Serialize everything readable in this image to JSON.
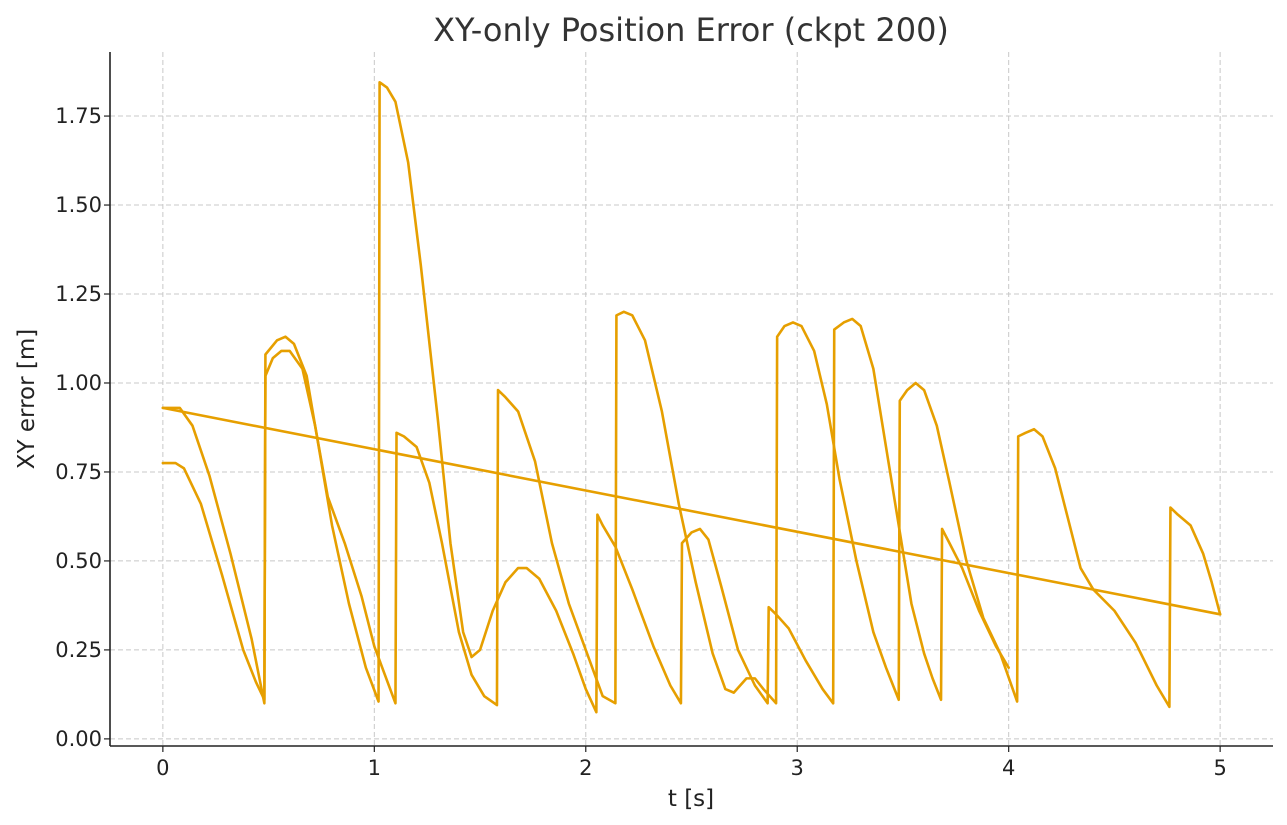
{
  "chart_data": {
    "type": "line",
    "title": "XY-only Position Error (ckpt 200)",
    "xlabel": "t [s]",
    "ylabel": "XY error [m]",
    "xlim": [
      -0.25,
      5.25
    ],
    "ylim": [
      -0.02,
      1.93
    ],
    "xticks": [
      0,
      1,
      2,
      3,
      4,
      5
    ],
    "xtick_labels": [
      "0",
      "1",
      "2",
      "3",
      "4",
      "5"
    ],
    "yticks": [
      0,
      0.25,
      0.5,
      0.75,
      1.0,
      1.25,
      1.5,
      1.75
    ],
    "ytick_labels": [
      "0.00",
      "0.25",
      "0.50",
      "0.75",
      "1.00",
      "1.25",
      "1.50",
      "1.75"
    ],
    "grid": true,
    "color": "#E69F00",
    "series": [
      {
        "values": [
          [
            0.0,
            0.93
          ],
          [
            0.08,
            0.93
          ],
          [
            0.14,
            0.88
          ],
          [
            0.22,
            0.74
          ],
          [
            0.32,
            0.52
          ],
          [
            0.42,
            0.28
          ],
          [
            0.48,
            0.1
          ],
          [
            0.485,
            1.08
          ],
          [
            0.54,
            1.12
          ],
          [
            0.58,
            1.13
          ],
          [
            0.62,
            1.11
          ],
          [
            0.68,
            1.02
          ],
          [
            0.72,
            0.88
          ],
          [
            0.78,
            0.68
          ],
          [
            0.86,
            0.55
          ],
          [
            0.94,
            0.4
          ],
          [
            1.0,
            0.26
          ],
          [
            1.05,
            0.18
          ],
          [
            1.1,
            0.1
          ],
          [
            1.105,
            0.86
          ],
          [
            1.14,
            0.85
          ],
          [
            1.2,
            0.82
          ],
          [
            1.26,
            0.72
          ],
          [
            1.32,
            0.55
          ],
          [
            1.4,
            0.3
          ],
          [
            1.46,
            0.18
          ],
          [
            1.52,
            0.12
          ],
          [
            1.58,
            0.095
          ],
          [
            1.585,
            0.98
          ],
          [
            1.62,
            0.96
          ],
          [
            1.68,
            0.92
          ],
          [
            1.76,
            0.78
          ],
          [
            1.84,
            0.55
          ],
          [
            1.92,
            0.38
          ],
          [
            2.0,
            0.25
          ],
          [
            2.08,
            0.12
          ],
          [
            2.14,
            0.1
          ],
          [
            2.145,
            1.19
          ],
          [
            2.18,
            1.2
          ],
          [
            2.22,
            1.19
          ],
          [
            2.28,
            1.12
          ],
          [
            2.36,
            0.92
          ],
          [
            2.44,
            0.66
          ],
          [
            2.52,
            0.44
          ],
          [
            2.6,
            0.24
          ],
          [
            2.66,
            0.14
          ],
          [
            2.7,
            0.13
          ],
          [
            2.76,
            0.17
          ],
          [
            2.8,
            0.17
          ],
          [
            2.84,
            0.14
          ],
          [
            2.9,
            0.1
          ],
          [
            2.905,
            1.13
          ],
          [
            2.94,
            1.16
          ],
          [
            2.98,
            1.17
          ],
          [
            3.02,
            1.16
          ],
          [
            3.08,
            1.09
          ],
          [
            3.14,
            0.94
          ],
          [
            3.2,
            0.73
          ],
          [
            3.28,
            0.5
          ],
          [
            3.36,
            0.3
          ],
          [
            3.42,
            0.2
          ],
          [
            3.48,
            0.11
          ],
          [
            3.485,
            0.95
          ],
          [
            3.52,
            0.98
          ],
          [
            3.56,
            1.0
          ],
          [
            3.6,
            0.98
          ],
          [
            3.66,
            0.88
          ],
          [
            3.72,
            0.72
          ],
          [
            3.8,
            0.5
          ],
          [
            3.88,
            0.34
          ],
          [
            3.96,
            0.24
          ],
          [
            4.04,
            0.105
          ],
          [
            4.045,
            0.85
          ],
          [
            4.08,
            0.86
          ],
          [
            4.12,
            0.87
          ],
          [
            4.16,
            0.85
          ],
          [
            4.22,
            0.76
          ],
          [
            4.28,
            0.62
          ],
          [
            4.34,
            0.48
          ],
          [
            4.4,
            0.42
          ],
          [
            4.5,
            0.36
          ],
          [
            4.6,
            0.27
          ],
          [
            4.7,
            0.15
          ],
          [
            4.76,
            0.09
          ],
          [
            4.765,
            0.65
          ],
          [
            4.8,
            0.63
          ],
          [
            4.86,
            0.6
          ],
          [
            4.92,
            0.52
          ],
          [
            4.96,
            0.44
          ],
          [
            5.0,
            0.35
          ]
        ]
      },
      {
        "values": [
          [
            0.0,
            0.775
          ],
          [
            0.06,
            0.775
          ],
          [
            0.1,
            0.76
          ],
          [
            0.18,
            0.66
          ],
          [
            0.28,
            0.46
          ],
          [
            0.38,
            0.25
          ],
          [
            0.44,
            0.16
          ],
          [
            0.48,
            0.11
          ],
          [
            0.485,
            1.02
          ],
          [
            0.52,
            1.07
          ],
          [
            0.56,
            1.09
          ],
          [
            0.6,
            1.09
          ],
          [
            0.66,
            1.04
          ],
          [
            0.72,
            0.88
          ],
          [
            0.8,
            0.6
          ],
          [
            0.88,
            0.38
          ],
          [
            0.96,
            0.2
          ],
          [
            1.02,
            0.105
          ],
          [
            1.025,
            1.845
          ],
          [
            1.06,
            1.83
          ],
          [
            1.1,
            1.79
          ],
          [
            1.16,
            1.62
          ],
          [
            1.22,
            1.33
          ],
          [
            1.3,
            0.9
          ],
          [
            1.36,
            0.55
          ],
          [
            1.42,
            0.3
          ],
          [
            1.46,
            0.23
          ],
          [
            1.5,
            0.25
          ],
          [
            1.56,
            0.36
          ],
          [
            1.62,
            0.44
          ],
          [
            1.68,
            0.48
          ],
          [
            1.72,
            0.48
          ],
          [
            1.78,
            0.45
          ],
          [
            1.86,
            0.36
          ],
          [
            1.94,
            0.24
          ],
          [
            2.0,
            0.14
          ],
          [
            2.05,
            0.075
          ],
          [
            2.055,
            0.63
          ],
          [
            2.08,
            0.6
          ],
          [
            2.14,
            0.54
          ],
          [
            2.22,
            0.42
          ],
          [
            2.32,
            0.26
          ],
          [
            2.4,
            0.15
          ],
          [
            2.45,
            0.1
          ],
          [
            2.455,
            0.55
          ],
          [
            2.5,
            0.58
          ],
          [
            2.54,
            0.59
          ],
          [
            2.58,
            0.56
          ],
          [
            2.64,
            0.43
          ],
          [
            2.72,
            0.25
          ],
          [
            2.8,
            0.15
          ],
          [
            2.86,
            0.1
          ],
          [
            2.865,
            0.37
          ],
          [
            2.9,
            0.35
          ],
          [
            2.96,
            0.31
          ],
          [
            3.04,
            0.22
          ],
          [
            3.12,
            0.14
          ],
          [
            3.17,
            0.1
          ],
          [
            3.175,
            1.15
          ],
          [
            3.22,
            1.17
          ],
          [
            3.26,
            1.18
          ],
          [
            3.3,
            1.16
          ],
          [
            3.36,
            1.04
          ],
          [
            3.42,
            0.82
          ],
          [
            3.48,
            0.6
          ],
          [
            3.54,
            0.38
          ],
          [
            3.6,
            0.24
          ],
          [
            3.64,
            0.17
          ],
          [
            3.68,
            0.11
          ],
          [
            3.685,
            0.59
          ],
          [
            3.72,
            0.55
          ],
          [
            3.78,
            0.48
          ],
          [
            3.86,
            0.36
          ],
          [
            3.94,
            0.26
          ],
          [
            4.0,
            0.2
          ]
        ]
      },
      {
        "values": [
          [
            0.0,
            0.93
          ],
          [
            5.0,
            0.35
          ]
        ]
      }
    ]
  }
}
